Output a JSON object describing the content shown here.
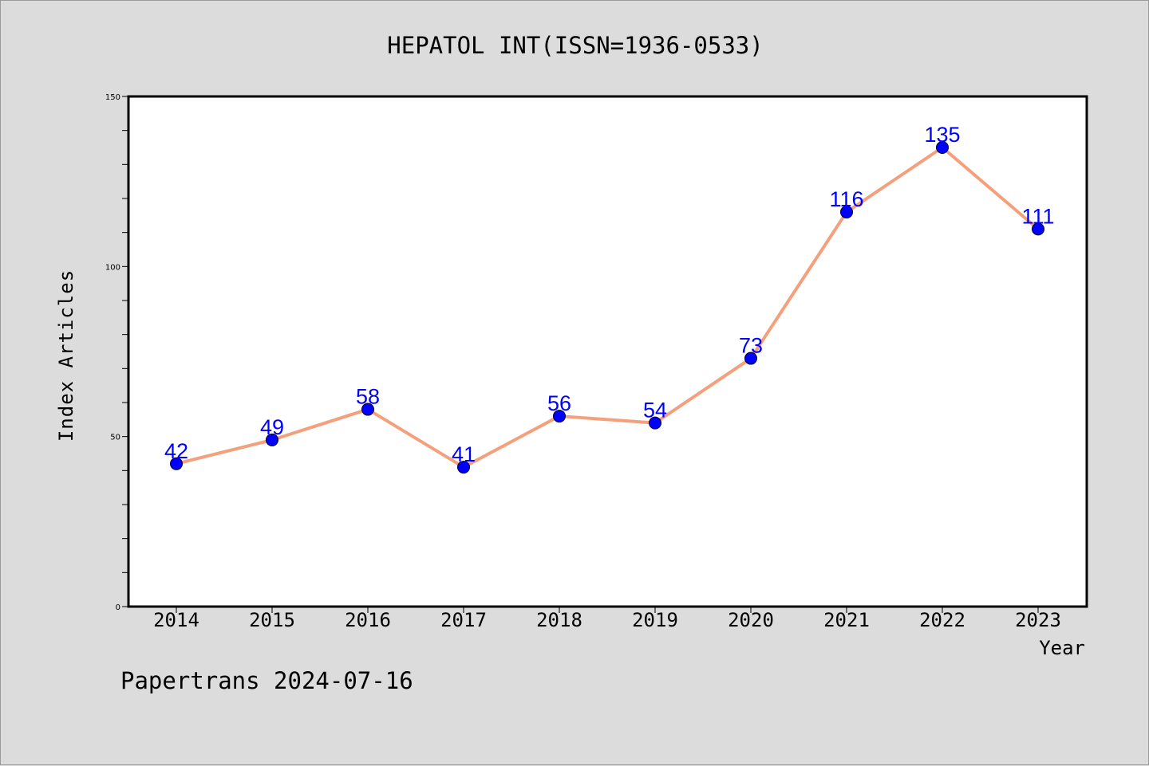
{
  "page": {
    "background": "#dcdcdc",
    "plot_background": "#ffffff",
    "footer": "Papertrans 2024-07-16"
  },
  "chart_data": {
    "type": "line",
    "title": "HEPATOL INT(ISSN=1936-0533)",
    "xlabel": "Year",
    "ylabel": "Index Articles",
    "categories": [
      "2014",
      "2015",
      "2016",
      "2017",
      "2018",
      "2019",
      "2020",
      "2021",
      "2022",
      "2023"
    ],
    "series": [
      {
        "values": [
          42,
          49,
          58,
          41,
          56,
          54,
          73,
          116,
          135,
          111
        ],
        "line_color": "#f4a07c",
        "marker_color": "#0000ff"
      }
    ],
    "data_labels": [
      "42",
      "49",
      "58",
      "41",
      "56",
      "54",
      "73",
      "116",
      "135",
      "111"
    ],
    "ylim": [
      0,
      150
    ],
    "y_ticks": [
      "0",
      "50",
      "100",
      "150"
    ],
    "y_minor_step": 10,
    "grid": false,
    "legend": "none"
  }
}
